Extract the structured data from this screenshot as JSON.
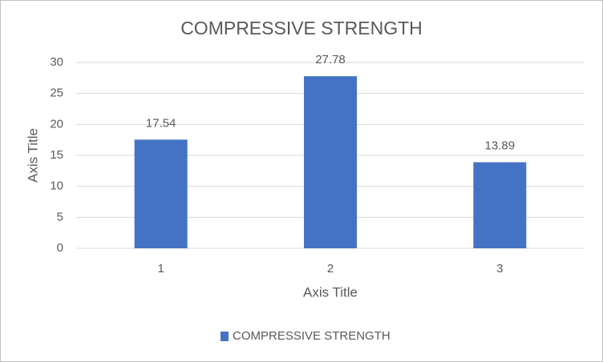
{
  "chart_data": {
    "type": "bar",
    "title": "COMPRESSIVE STRENGTH",
    "x_label": "Axis Title",
    "y_label": "Axis Title",
    "categories": [
      "1",
      "2",
      "3"
    ],
    "series": [
      {
        "name": "COMPRESSIVE STRENGTH",
        "color": "#4472c4",
        "values": [
          17.54,
          27.78,
          13.89
        ]
      }
    ],
    "ylim": [
      0,
      30
    ],
    "yticks": [
      0,
      5,
      10,
      15,
      20,
      25,
      30
    ],
    "grid": true,
    "legend": "bottom"
  }
}
